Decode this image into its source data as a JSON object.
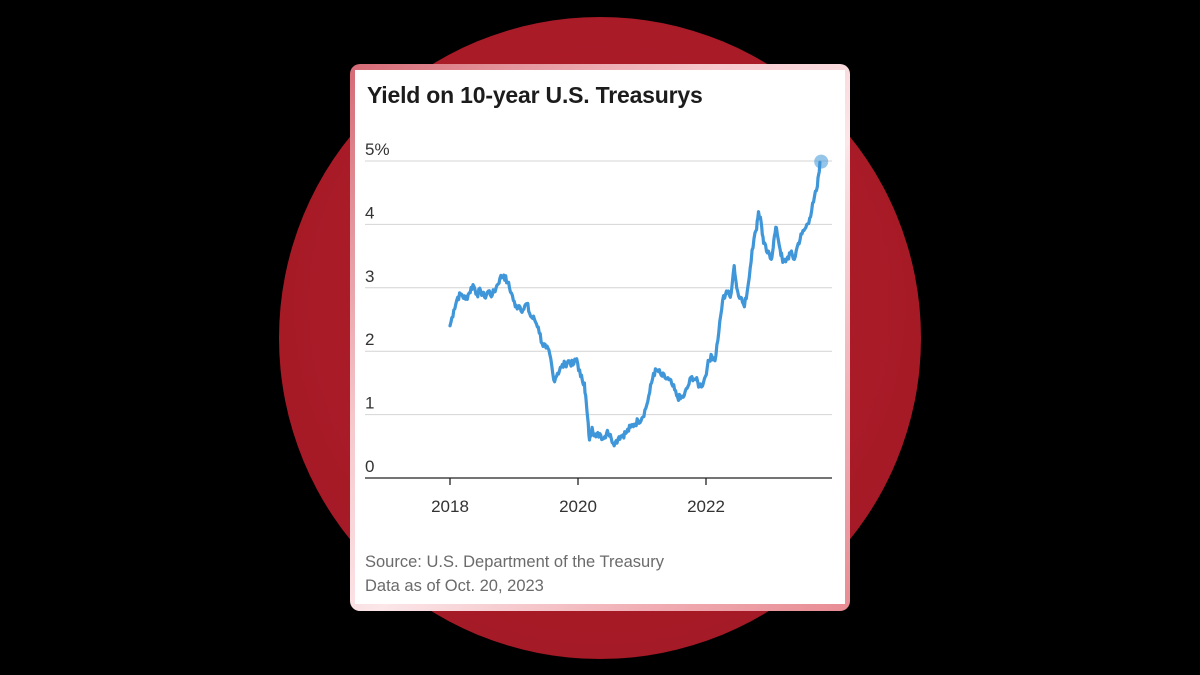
{
  "chart_data": {
    "type": "line",
    "title": "Yield on 10-year U.S. Treasurys",
    "xlabel": "",
    "ylabel": "",
    "x_ticks": [
      2018,
      2020,
      2022
    ],
    "y_ticks": [
      "0",
      "1",
      "2",
      "3",
      "4",
      "5%"
    ],
    "ylim": [
      0,
      5
    ],
    "xlim": [
      2017.8,
      2024.0
    ],
    "grid": true,
    "color": "#3f96d8",
    "series": [
      {
        "name": "",
        "points": [
          [
            2018.0,
            2.4
          ],
          [
            2018.06,
            2.65
          ],
          [
            2018.12,
            2.85
          ],
          [
            2018.18,
            2.9
          ],
          [
            2018.24,
            2.82
          ],
          [
            2018.3,
            2.92
          ],
          [
            2018.36,
            3.05
          ],
          [
            2018.42,
            2.9
          ],
          [
            2018.48,
            2.95
          ],
          [
            2018.54,
            2.85
          ],
          [
            2018.6,
            2.95
          ],
          [
            2018.66,
            2.88
          ],
          [
            2018.72,
            3.0
          ],
          [
            2018.78,
            3.15
          ],
          [
            2018.84,
            3.2
          ],
          [
            2018.9,
            3.08
          ],
          [
            2018.96,
            2.92
          ],
          [
            2019.02,
            2.7
          ],
          [
            2019.08,
            2.72
          ],
          [
            2019.14,
            2.65
          ],
          [
            2019.2,
            2.75
          ],
          [
            2019.26,
            2.55
          ],
          [
            2019.32,
            2.5
          ],
          [
            2019.38,
            2.38
          ],
          [
            2019.44,
            2.12
          ],
          [
            2019.5,
            2.05
          ],
          [
            2019.56,
            1.95
          ],
          [
            2019.62,
            1.55
          ],
          [
            2019.68,
            1.65
          ],
          [
            2019.74,
            1.75
          ],
          [
            2019.8,
            1.8
          ],
          [
            2019.86,
            1.85
          ],
          [
            2019.92,
            1.78
          ],
          [
            2019.98,
            1.88
          ],
          [
            2020.04,
            1.6
          ],
          [
            2020.1,
            1.5
          ],
          [
            2020.14,
            1.05
          ],
          [
            2020.18,
            0.6
          ],
          [
            2020.22,
            0.8
          ],
          [
            2020.28,
            0.65
          ],
          [
            2020.34,
            0.7
          ],
          [
            2020.4,
            0.62
          ],
          [
            2020.46,
            0.75
          ],
          [
            2020.52,
            0.62
          ],
          [
            2020.58,
            0.55
          ],
          [
            2020.64,
            0.65
          ],
          [
            2020.7,
            0.68
          ],
          [
            2020.76,
            0.72
          ],
          [
            2020.82,
            0.8
          ],
          [
            2020.88,
            0.85
          ],
          [
            2020.94,
            0.9
          ],
          [
            2021.0,
            0.95
          ],
          [
            2021.06,
            1.1
          ],
          [
            2021.12,
            1.35
          ],
          [
            2021.18,
            1.65
          ],
          [
            2021.24,
            1.7
          ],
          [
            2021.3,
            1.62
          ],
          [
            2021.36,
            1.58
          ],
          [
            2021.42,
            1.55
          ],
          [
            2021.48,
            1.45
          ],
          [
            2021.54,
            1.3
          ],
          [
            2021.6,
            1.25
          ],
          [
            2021.66,
            1.3
          ],
          [
            2021.72,
            1.45
          ],
          [
            2021.78,
            1.6
          ],
          [
            2021.84,
            1.55
          ],
          [
            2021.9,
            1.45
          ],
          [
            2021.96,
            1.5
          ],
          [
            2022.02,
            1.75
          ],
          [
            2022.08,
            1.95
          ],
          [
            2022.14,
            1.85
          ],
          [
            2022.2,
            2.3
          ],
          [
            2022.26,
            2.8
          ],
          [
            2022.32,
            2.95
          ],
          [
            2022.38,
            2.85
          ],
          [
            2022.44,
            3.35
          ],
          [
            2022.48,
            3.0
          ],
          [
            2022.54,
            2.85
          ],
          [
            2022.6,
            2.7
          ],
          [
            2022.66,
            3.05
          ],
          [
            2022.72,
            3.6
          ],
          [
            2022.78,
            3.9
          ],
          [
            2022.82,
            4.2
          ],
          [
            2022.86,
            4.05
          ],
          [
            2022.9,
            3.7
          ],
          [
            2022.96,
            3.55
          ],
          [
            2023.02,
            3.45
          ],
          [
            2023.06,
            3.75
          ],
          [
            2023.1,
            3.95
          ],
          [
            2023.16,
            3.6
          ],
          [
            2023.2,
            3.4
          ],
          [
            2023.26,
            3.45
          ],
          [
            2023.32,
            3.55
          ],
          [
            2023.38,
            3.45
          ],
          [
            2023.44,
            3.7
          ],
          [
            2023.5,
            3.85
          ],
          [
            2023.56,
            3.95
          ],
          [
            2023.62,
            4.1
          ],
          [
            2023.68,
            4.35
          ],
          [
            2023.74,
            4.6
          ],
          [
            2023.78,
            4.98
          ]
        ]
      }
    ],
    "end_marker": [
      2023.8,
      4.99
    ]
  },
  "footer": {
    "source": "Source: U.S. Department of the Treasury",
    "data_as_of": "Data as of Oct. 20, 2023"
  }
}
